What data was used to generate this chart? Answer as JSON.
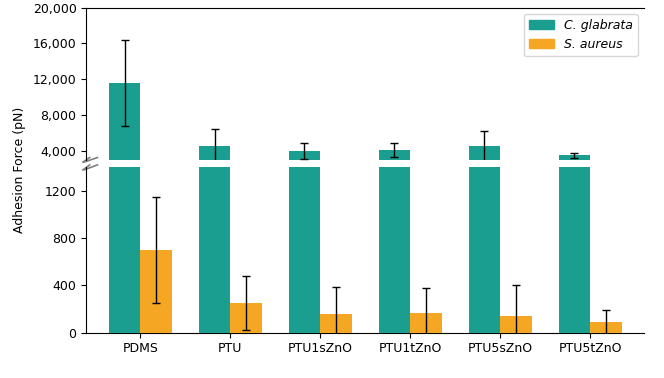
{
  "categories": [
    "PDMS",
    "PTU",
    "PTU1sZnO",
    "PTU1tZnO",
    "PTU5sZnO",
    "PTU5tZnO"
  ],
  "cg_values": [
    11600,
    4500,
    4000,
    4100,
    4500,
    3500
  ],
  "sa_values": [
    700,
    250,
    160,
    165,
    140,
    90
  ],
  "cg_errors": [
    4800,
    1900,
    900,
    800,
    1700,
    300
  ],
  "sa_errors": [
    450,
    230,
    230,
    210,
    260,
    100
  ],
  "cg_color": "#1a9e8f",
  "sa_color": "#f5a623",
  "bar_width": 0.35,
  "upper_ylim": [
    3000,
    20000
  ],
  "lower_ylim": [
    0,
    1400
  ],
  "upper_yticks": [
    4000,
    8000,
    12000,
    16000,
    20000
  ],
  "lower_yticks": [
    0,
    400,
    800,
    1200
  ],
  "ylabel": "Adhesion Force (pN)",
  "legend_labels": [
    "C. glabrata",
    "S. aureus"
  ],
  "figsize": [
    6.64,
    3.78
  ],
  "dpi": 100
}
